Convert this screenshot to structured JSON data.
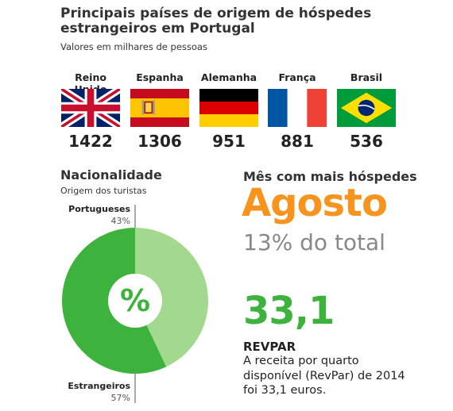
{
  "header": {
    "title": "Principais países de origem de hóspedes estrangeiros em Portugal",
    "subtitle": "Valores em milhares de pessoas"
  },
  "countries": [
    {
      "name": "Reino Unido",
      "value": "1422",
      "flag": "uk-flag-icon"
    },
    {
      "name": "Espanha",
      "value": "1306",
      "flag": "spain-flag-icon"
    },
    {
      "name": "Alemanha",
      "value": "951",
      "flag": "germany-flag-icon"
    },
    {
      "name": "França",
      "value": "881",
      "flag": "france-flag-icon"
    },
    {
      "name": "Brasil",
      "value": "536",
      "flag": "brazil-flag-icon"
    }
  ],
  "nationality": {
    "title": "Nacionalidade",
    "subtitle": "Origem dos turistas",
    "center_symbol": "%"
  },
  "peak_month": {
    "label": "Mês com mais hóspedes",
    "value": "Agosto",
    "share": "13% do total"
  },
  "revpar": {
    "value": "33,1",
    "title": "REVPAR",
    "description": "A receita por quarto disponível (RevPar) de 2014 foi 33,1 euros."
  },
  "colors": {
    "orange": "#f7941d",
    "green_dark": "#3db33d",
    "green_light": "#a3d98f",
    "grey": "#888888"
  },
  "chart_data": [
    {
      "type": "bar",
      "title": "Principais países de origem de hóspedes estrangeiros em Portugal",
      "subtitle": "Valores em milhares de pessoas",
      "categories": [
        "Reino Unido",
        "Espanha",
        "Alemanha",
        "França",
        "Brasil"
      ],
      "values": [
        1422,
        1306,
        951,
        881,
        536
      ]
    },
    {
      "type": "pie",
      "title": "Nacionalidade",
      "subtitle": "Origem dos turistas",
      "labels": [
        "Portugueses",
        "Estrangeiros"
      ],
      "values": [
        43,
        57
      ],
      "value_labels": [
        "43%",
        "57%"
      ],
      "colors": [
        "#a3d98f",
        "#3db33d"
      ]
    }
  ]
}
